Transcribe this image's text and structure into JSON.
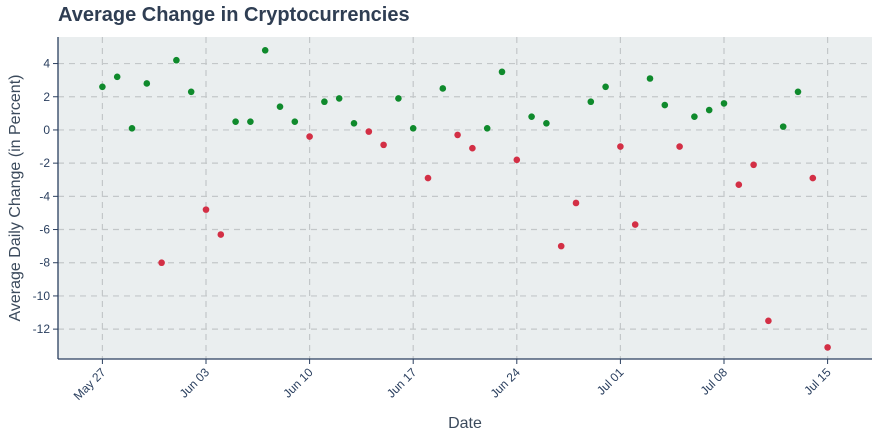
{
  "chart_data": {
    "type": "scatter",
    "title": "Average Change in Cryptocurrencies",
    "xlabel": "Date",
    "ylabel": "Average Daily Change (in Percent)",
    "x_axis_type": "date",
    "xlim": [
      "2018-05-24",
      "2018-07-18"
    ],
    "ylim": [
      -13.8,
      5.6
    ],
    "x_ticks": [
      {
        "date": "2018-05-27",
        "label": "May 27"
      },
      {
        "date": "2018-06-03",
        "label": "Jun 03"
      },
      {
        "date": "2018-06-10",
        "label": "Jun 10"
      },
      {
        "date": "2018-06-17",
        "label": "Jun 17"
      },
      {
        "date": "2018-06-24",
        "label": "Jun 24"
      },
      {
        "date": "2018-07-01",
        "label": "Jul 01"
      },
      {
        "date": "2018-07-08",
        "label": "Jul 08"
      },
      {
        "date": "2018-07-15",
        "label": "Jul 15"
      }
    ],
    "y_ticks": [
      4,
      2,
      0,
      -2,
      -4,
      -6,
      -8,
      -10,
      -12
    ],
    "grid": true,
    "colors": {
      "positive": "#0f8a2c",
      "negative": "#d32f45",
      "plot_bg": "#eaeeef",
      "grid": "#c3c7c9",
      "axis": "#2a3f5f"
    },
    "points": [
      {
        "x": "2018-05-27",
        "y": 2.6
      },
      {
        "x": "2018-05-28",
        "y": 3.2
      },
      {
        "x": "2018-05-29",
        "y": 0.1
      },
      {
        "x": "2018-05-30",
        "y": 2.8
      },
      {
        "x": "2018-05-31",
        "y": -8.0
      },
      {
        "x": "2018-06-01",
        "y": 4.2
      },
      {
        "x": "2018-06-02",
        "y": 2.3
      },
      {
        "x": "2018-06-03",
        "y": -4.8
      },
      {
        "x": "2018-06-04",
        "y": -6.3
      },
      {
        "x": "2018-06-05",
        "y": 0.5
      },
      {
        "x": "2018-06-06",
        "y": 0.5
      },
      {
        "x": "2018-06-07",
        "y": 4.8
      },
      {
        "x": "2018-06-08",
        "y": 1.4
      },
      {
        "x": "2018-06-09",
        "y": 0.5
      },
      {
        "x": "2018-06-10",
        "y": -0.4
      },
      {
        "x": "2018-06-11",
        "y": 1.7
      },
      {
        "x": "2018-06-12",
        "y": 1.9
      },
      {
        "x": "2018-06-13",
        "y": 0.4
      },
      {
        "x": "2018-06-14",
        "y": -0.1
      },
      {
        "x": "2018-06-15",
        "y": -0.9
      },
      {
        "x": "2018-06-16",
        "y": 1.9
      },
      {
        "x": "2018-06-17",
        "y": 0.1
      },
      {
        "x": "2018-06-18",
        "y": -2.9
      },
      {
        "x": "2018-06-19",
        "y": 2.5
      },
      {
        "x": "2018-06-20",
        "y": -0.3
      },
      {
        "x": "2018-06-21",
        "y": -1.1
      },
      {
        "x": "2018-06-22",
        "y": 0.1
      },
      {
        "x": "2018-06-23",
        "y": 3.5
      },
      {
        "x": "2018-06-24",
        "y": -1.8
      },
      {
        "x": "2018-06-25",
        "y": 0.8
      },
      {
        "x": "2018-06-26",
        "y": 0.4
      },
      {
        "x": "2018-06-27",
        "y": -7.0
      },
      {
        "x": "2018-06-28",
        "y": -4.4
      },
      {
        "x": "2018-06-29",
        "y": 1.7
      },
      {
        "x": "2018-06-30",
        "y": 2.6
      },
      {
        "x": "2018-07-01",
        "y": -1.0
      },
      {
        "x": "2018-07-02",
        "y": -5.7
      },
      {
        "x": "2018-07-03",
        "y": 3.1
      },
      {
        "x": "2018-07-04",
        "y": 1.5
      },
      {
        "x": "2018-07-05",
        "y": -1.0
      },
      {
        "x": "2018-07-06",
        "y": 0.8
      },
      {
        "x": "2018-07-07",
        "y": 1.2
      },
      {
        "x": "2018-07-08",
        "y": 1.6
      },
      {
        "x": "2018-07-09",
        "y": -3.3
      },
      {
        "x": "2018-07-10",
        "y": -2.1
      },
      {
        "x": "2018-07-11",
        "y": -11.5
      },
      {
        "x": "2018-07-12",
        "y": 0.2
      },
      {
        "x": "2018-07-13",
        "y": 2.3
      },
      {
        "x": "2018-07-14",
        "y": -2.9
      },
      {
        "x": "2018-07-15",
        "y": -13.1
      }
    ]
  }
}
